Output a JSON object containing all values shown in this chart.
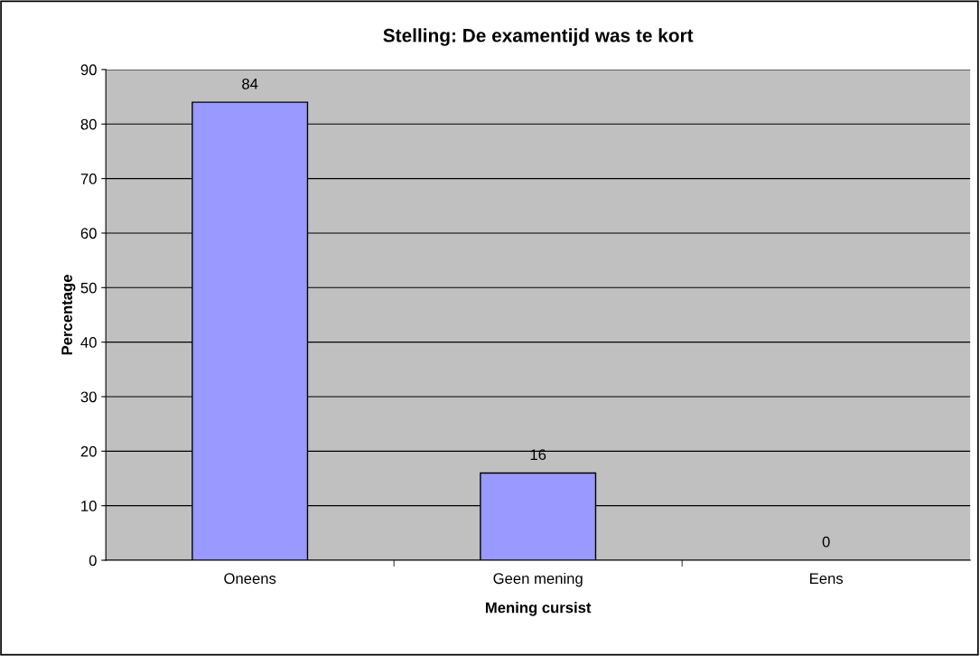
{
  "chart_data": {
    "type": "bar",
    "title": "Stelling: De examentijd was te kort",
    "xlabel": "Mening cursist",
    "ylabel": "Percentage",
    "categories": [
      "Oneens",
      "Geen mening",
      "Eens"
    ],
    "values": [
      84,
      16,
      0
    ],
    "color": "#9999ff",
    "ylim": [
      0,
      90
    ],
    "yticks": [
      0,
      10,
      20,
      30,
      40,
      50,
      60,
      70,
      80,
      90
    ],
    "grid": "y",
    "data_labels": true
  }
}
